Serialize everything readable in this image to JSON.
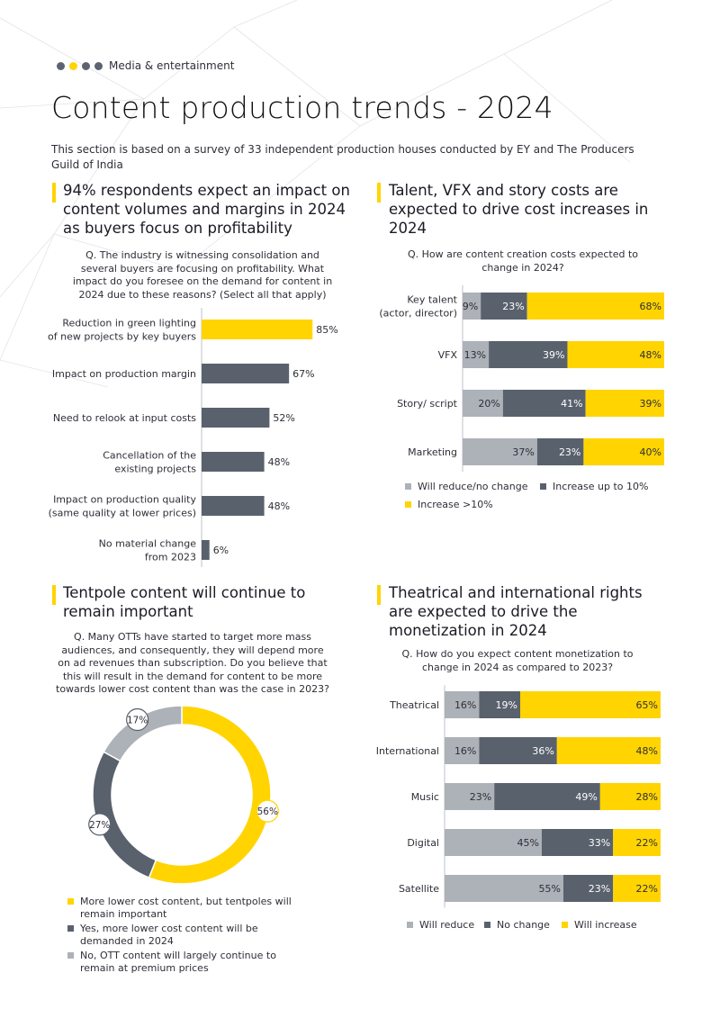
{
  "header": {
    "section": "Media & entertainment",
    "title": "Content production trends - 2024",
    "intro": "This section is based on a survey of 33 independent production houses conducted by EY and The Producers Guild of India"
  },
  "colors": {
    "yellow": "#ffd400",
    "dark": "#59616d",
    "grey": "#adb1b8",
    "text": "#2e2e38"
  },
  "panel1": {
    "heading": "94% respondents expect an impact on content volumes and margins in 2024 as buyers focus on profitability",
    "question": "Q. The industry is witnessing consolidation and several buyers are focusing on profitability. What impact do you foresee on the demand for content in 2024 due to these reasons? (Select all that apply)"
  },
  "panel2": {
    "heading": "Talent, VFX and story costs are expected to drive cost increases in 2024",
    "question": "Q. How are content creation costs expected to change in 2024?"
  },
  "panel3": {
    "heading": "Tentpole content will continue to remain important",
    "question": "Q. Many OTTs have started to target more mass audiences, and consequently, they will depend more on ad revenues than subscription. Do you believe that this will result in the demand for content to be more towards lower cost content than was the case in 2023?"
  },
  "panel4": {
    "heading": "Theatrical and international rights are expected to drive the monetization in 2024",
    "question": "Q. How do you expect content monetization to change in 2024 as compared to 2023?"
  },
  "chart_data": [
    {
      "type": "bar",
      "orientation": "horizontal",
      "categories": [
        "Reduction in green lighting of new projects by key buyers",
        "Impact on production margin",
        "Need to relook at input costs",
        "Cancellation of the existing projects",
        "Impact on production quality (same quality at lower prices)",
        "No material change from 2023"
      ],
      "category_lines": [
        [
          "Reduction in green lighting",
          "of new projects by key buyers"
        ],
        [
          "Impact on production margin"
        ],
        [
          "Need to relook at input costs"
        ],
        [
          "Cancellation of the",
          "existing projects"
        ],
        [
          "Impact on production quality",
          "(same quality at lower prices)"
        ],
        [
          "No material change",
          "from 2023"
        ]
      ],
      "values": [
        85,
        67,
        52,
        48,
        48,
        6
      ],
      "labels": [
        "85%",
        "67%",
        "52%",
        "48%",
        "48%",
        "6%"
      ],
      "highlight_color": "#ffd400",
      "bar_color": "#59616d"
    },
    {
      "type": "bar",
      "orientation": "horizontal",
      "stacked": true,
      "categories": [
        "Key talent (actor, director)",
        "VFX",
        "Story/ script",
        "Marketing"
      ],
      "category_lines": [
        [
          "Key talent",
          "(actor, director)"
        ],
        [
          "VFX"
        ],
        [
          "Story/ script"
        ],
        [
          "Marketing"
        ]
      ],
      "series": [
        {
          "name": "Will reduce/no change",
          "color": "#adb1b8",
          "values": [
            9,
            13,
            20,
            37
          ],
          "labels": [
            "9%",
            "13%",
            "20%",
            "37%"
          ]
        },
        {
          "name": "Increase up to 10%",
          "color": "#59616d",
          "values": [
            23,
            39,
            41,
            23
          ],
          "labels": [
            "23%",
            "39%",
            "41%",
            "23%"
          ]
        },
        {
          "name": "Increase >10%",
          "color": "#ffd400",
          "values": [
            68,
            48,
            39,
            40
          ],
          "labels": [
            "68%",
            "48%",
            "39%",
            "40%"
          ]
        }
      ]
    },
    {
      "type": "pie",
      "donut": true,
      "slices": [
        {
          "name": "More lower cost content, but tentpoles will remain important",
          "value": 56,
          "label": "56%",
          "color": "#ffd400"
        },
        {
          "name": "Yes, more lower cost content will be demanded in 2024",
          "value": 27,
          "label": "27%",
          "color": "#59616d"
        },
        {
          "name": "No, OTT content will largely continue to remain at premium prices",
          "value": 17,
          "label": "17%",
          "color": "#adb1b8"
        }
      ]
    },
    {
      "type": "bar",
      "orientation": "horizontal",
      "stacked": true,
      "categories": [
        "Theatrical",
        "International",
        "Music",
        "Digital",
        "Satellite"
      ],
      "series": [
        {
          "name": "Will reduce",
          "color": "#adb1b8",
          "values": [
            16,
            16,
            23,
            45,
            55
          ],
          "labels": [
            "16%",
            "16%",
            "23%",
            "45%",
            "55%"
          ]
        },
        {
          "name": "No change",
          "color": "#59616d",
          "values": [
            19,
            36,
            49,
            33,
            23
          ],
          "labels": [
            "19%",
            "36%",
            "49%",
            "33%",
            "23%"
          ]
        },
        {
          "name": "Will increase",
          "color": "#ffd400",
          "values": [
            65,
            48,
            28,
            22,
            22
          ],
          "labels": [
            "65%",
            "48%",
            "28%",
            "22%",
            "22%"
          ]
        }
      ]
    }
  ]
}
